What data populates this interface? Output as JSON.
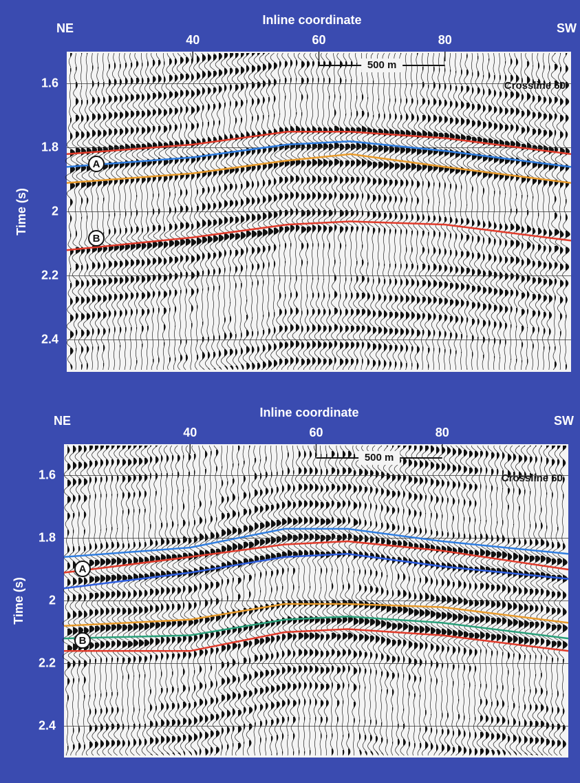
{
  "chart_data": [
    {
      "type": "seismic",
      "title": "Inline coordinate",
      "y_label": "Time (s)",
      "left_label": "NE",
      "right_label": "SW",
      "section_label": "Crossline 60",
      "scale_label": "500 m",
      "annotations": [
        "A",
        "B"
      ],
      "xlim": [
        20,
        100
      ],
      "xticks": [
        40,
        60,
        80
      ],
      "ylim": [
        1.5,
        2.5
      ],
      "y_reversed": true,
      "yticks": [
        1.6,
        1.8,
        2.0,
        2.2,
        2.4
      ],
      "grid": true,
      "x": [
        20,
        40,
        55,
        65,
        80,
        100
      ],
      "series": [
        {
          "color": "#e03a2a",
          "values": [
            1.82,
            1.79,
            1.75,
            1.75,
            1.77,
            1.82
          ]
        },
        {
          "color": "#2f7de0",
          "values": [
            1.86,
            1.83,
            1.79,
            1.78,
            1.81,
            1.86
          ]
        },
        {
          "color": "#e89a2a",
          "values": [
            1.91,
            1.88,
            1.84,
            1.82,
            1.86,
            1.91
          ]
        },
        {
          "color": "#e03a2a",
          "values": [
            2.12,
            2.08,
            2.04,
            2.03,
            2.04,
            2.09
          ]
        }
      ]
    },
    {
      "type": "seismic",
      "title": "Inline coordinate",
      "y_label": "Time (s)",
      "left_label": "NE",
      "right_label": "SW",
      "section_label": "Crossline 60",
      "scale_label": "500 m",
      "annotations": [
        "A",
        "B"
      ],
      "xlim": [
        20,
        100
      ],
      "xticks": [
        40,
        60,
        80
      ],
      "ylim": [
        1.5,
        2.5
      ],
      "y_reversed": true,
      "yticks": [
        1.6,
        1.8,
        2.0,
        2.2,
        2.4
      ],
      "grid": true,
      "x": [
        20,
        40,
        55,
        65,
        80,
        100
      ],
      "series": [
        {
          "color": "#2f7de0",
          "values": [
            1.86,
            1.83,
            1.77,
            1.77,
            1.81,
            1.85
          ]
        },
        {
          "color": "#e03a2a",
          "values": [
            1.91,
            1.86,
            1.82,
            1.81,
            1.84,
            1.9
          ]
        },
        {
          "color": "#2f5fe0",
          "values": [
            1.96,
            1.91,
            1.86,
            1.85,
            1.89,
            1.93
          ]
        },
        {
          "color": "#e89a2a",
          "values": [
            2.08,
            2.06,
            2.01,
            2.01,
            2.02,
            2.07
          ]
        },
        {
          "color": "#2aa07a",
          "values": [
            2.12,
            2.11,
            2.06,
            2.05,
            2.07,
            2.12
          ]
        },
        {
          "color": "#e03a2a",
          "values": [
            2.16,
            2.16,
            2.1,
            2.09,
            2.11,
            2.16
          ]
        }
      ]
    }
  ]
}
